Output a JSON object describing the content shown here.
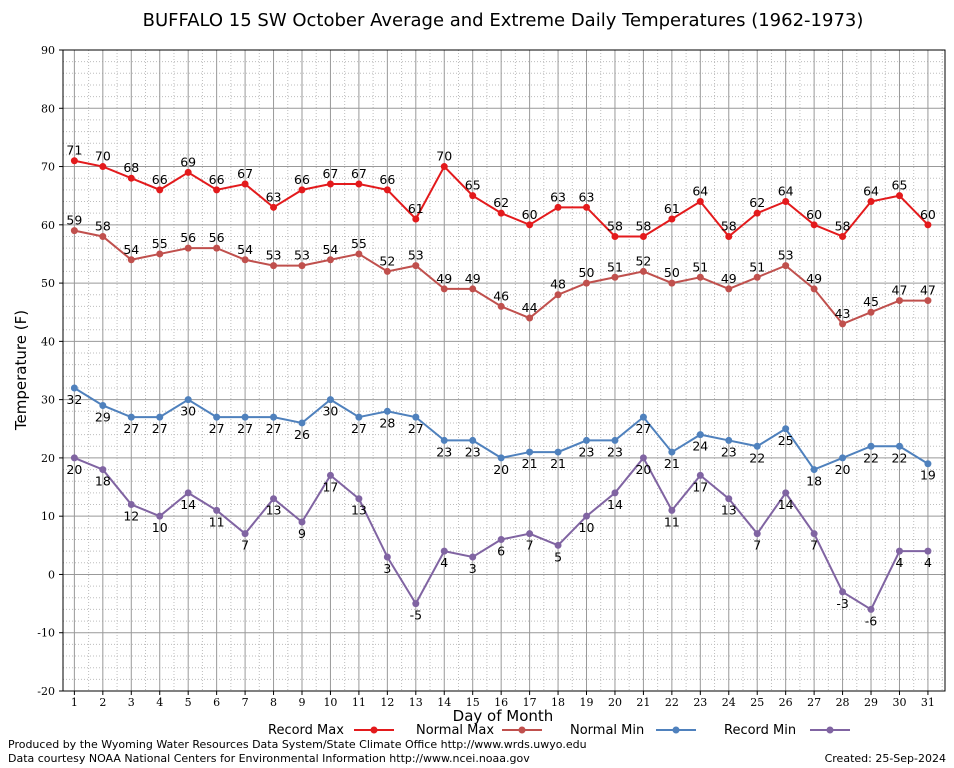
{
  "chart_data": {
    "type": "line",
    "title": "BUFFALO 15 SW October Average and Extreme Daily Temperatures (1962-1973)",
    "xlabel": "Day of Month",
    "ylabel": "Temperature (F)",
    "ylim": [
      -20,
      90
    ],
    "yticks": [
      -20,
      -10,
      0,
      10,
      20,
      30,
      40,
      50,
      60,
      70,
      80,
      90
    ],
    "x": [
      1,
      2,
      3,
      4,
      5,
      6,
      7,
      8,
      9,
      10,
      11,
      12,
      13,
      14,
      15,
      16,
      17,
      18,
      19,
      20,
      21,
      22,
      23,
      24,
      25,
      26,
      27,
      28,
      29,
      30,
      31
    ],
    "grid": true,
    "legend_position": "bottom",
    "series": [
      {
        "name": "Record Max",
        "color": "#e31a1c",
        "values": [
          71,
          70,
          68,
          66,
          69,
          66,
          67,
          63,
          66,
          67,
          67,
          66,
          61,
          70,
          65,
          62,
          60,
          63,
          63,
          58,
          58,
          61,
          64,
          58,
          62,
          64,
          60,
          58,
          64,
          65,
          60
        ]
      },
      {
        "name": "Normal Max",
        "color": "#c0504d",
        "values": [
          59,
          58,
          54,
          55,
          56,
          56,
          54,
          53,
          53,
          54,
          55,
          52,
          53,
          49,
          49,
          46,
          44,
          48,
          50,
          51,
          52,
          50,
          51,
          49,
          51,
          53,
          49,
          43,
          45,
          47,
          47
        ]
      },
      {
        "name": "Normal Min",
        "color": "#4f81bd",
        "values": [
          32,
          29,
          27,
          27,
          30,
          27,
          27,
          27,
          26,
          30,
          27,
          28,
          27,
          23,
          23,
          20,
          21,
          21,
          23,
          23,
          27,
          21,
          24,
          23,
          22,
          25,
          18,
          20,
          22,
          22,
          19
        ]
      },
      {
        "name": "Record Min",
        "color": "#8064a2",
        "values": [
          20,
          18,
          12,
          10,
          14,
          11,
          7,
          13,
          9,
          17,
          13,
          3,
          -5,
          4,
          3,
          6,
          7,
          5,
          10,
          14,
          20,
          11,
          17,
          13,
          7,
          14,
          7,
          -3,
          -6,
          4,
          4
        ]
      }
    ]
  },
  "footer": {
    "produced_by": "Produced by the Wyoming Water Resources Data System/State Climate Office http://www.wrds.uwyo.edu",
    "courtesy": "Data courtesy NOAA National Centers for Environmental Information http://www.ncei.noaa.gov",
    "created": "Created:  25-Sep-2024"
  }
}
